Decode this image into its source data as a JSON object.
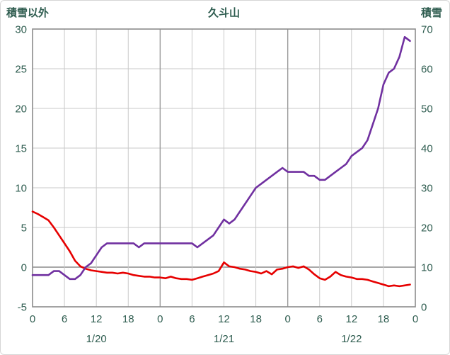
{
  "page": {
    "title_left": "積雪以外",
    "title_center": "久斗山",
    "title_right": "積雪"
  },
  "colors": {
    "axis_text": "#2f5d50",
    "grid": "#c9c9c9",
    "grid_major": "#9b9b9b",
    "zero_line": "#8c8c8c",
    "border": "#8c8c8c",
    "snow_line": "#7030a0",
    "other_line": "#e60000"
  },
  "chart_data": {
    "type": "line",
    "title": "久斗山",
    "left_axis": {
      "label": "積雪以外",
      "min": -5,
      "max": 30,
      "step": 5
    },
    "right_axis": {
      "label": "積雪",
      "min": 0,
      "max": 70,
      "step": 10
    },
    "x_hours_total": 72,
    "x_tick_hours": [
      0,
      6,
      12,
      18,
      24,
      30,
      36,
      42,
      48,
      54,
      60,
      66,
      72
    ],
    "x_tick_labels": [
      "0",
      "6",
      "12",
      "18",
      "0",
      "6",
      "12",
      "18",
      "0",
      "6",
      "12",
      "18",
      "0"
    ],
    "day_labels": [
      {
        "label": "1/20",
        "hour": 12
      },
      {
        "label": "1/21",
        "hour": 36
      },
      {
        "label": "1/22",
        "hour": 60
      }
    ],
    "grid": true,
    "legend_position": "none",
    "series": [
      {
        "name": "積雪以外",
        "axis": "left",
        "color": "#e60000",
        "values": [
          7.0,
          6.7,
          6.3,
          5.9,
          5.0,
          4.0,
          3.0,
          2.0,
          0.8,
          0.1,
          -0.2,
          -0.4,
          -0.5,
          -0.6,
          -0.7,
          -0.7,
          -0.8,
          -0.7,
          -0.8,
          -1.0,
          -1.1,
          -1.2,
          -1.2,
          -1.3,
          -1.3,
          -1.4,
          -1.2,
          -1.4,
          -1.5,
          -1.5,
          -1.6,
          -1.4,
          -1.2,
          -1.0,
          -0.8,
          -0.5,
          0.6,
          0.1,
          0.0,
          -0.2,
          -0.3,
          -0.5,
          -0.6,
          -0.8,
          -0.5,
          -0.9,
          -0.3,
          -0.2,
          0.0,
          0.1,
          -0.1,
          0.1,
          -0.3,
          -0.9,
          -1.4,
          -1.6,
          -1.2,
          -0.6,
          -1.0,
          -1.2,
          -1.3,
          -1.5,
          -1.5,
          -1.6,
          -1.8,
          -2.0,
          -2.2,
          -2.4,
          -2.3,
          -2.4,
          -2.3,
          -2.2
        ]
      },
      {
        "name": "積雪",
        "axis": "right",
        "color": "#7030a0",
        "values": [
          8,
          8,
          8,
          8,
          9,
          9,
          8,
          7,
          7,
          8,
          10,
          11,
          13,
          15,
          16,
          16,
          16,
          16,
          16,
          16,
          15,
          16,
          16,
          16,
          16,
          16,
          16,
          16,
          16,
          16,
          16,
          15,
          16,
          17,
          18,
          20,
          22,
          21,
          22,
          24,
          26,
          28,
          30,
          31,
          32,
          33,
          34,
          35,
          34,
          34,
          34,
          34,
          33,
          33,
          32,
          32,
          33,
          34,
          35,
          36,
          38,
          39,
          40,
          42,
          46,
          50,
          56,
          59,
          60,
          63,
          68,
          67
        ]
      }
    ]
  }
}
